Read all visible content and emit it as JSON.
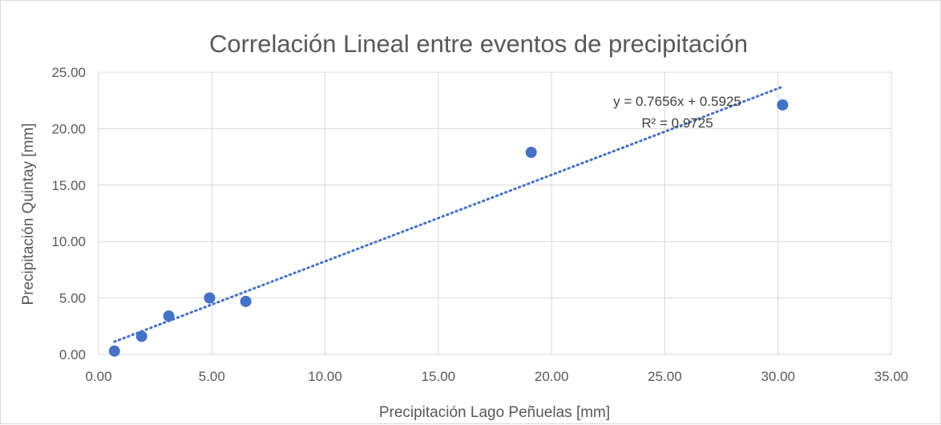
{
  "chart_data": {
    "type": "scatter",
    "title": "Correlación Lineal entre eventos de precipitación",
    "xlabel": "Precipitación Lago Peñuelas [mm]",
    "ylabel": "Precipitación Quintay [mm]",
    "xlim": [
      0,
      35
    ],
    "ylim": [
      0,
      25
    ],
    "xticks": [
      "0.00",
      "5.00",
      "10.00",
      "15.00",
      "20.00",
      "25.00",
      "30.00",
      "35.00"
    ],
    "yticks": [
      "0.00",
      "5.00",
      "10.00",
      "15.00",
      "20.00",
      "25.00"
    ],
    "grid": true,
    "series": [
      {
        "points": [
          {
            "x": 0.7,
            "y": 0.3
          },
          {
            "x": 1.9,
            "y": 1.6
          },
          {
            "x": 3.1,
            "y": 3.4
          },
          {
            "x": 4.9,
            "y": 5.0
          },
          {
            "x": 6.5,
            "y": 4.7
          },
          {
            "x": 19.1,
            "y": 17.9
          },
          {
            "x": 30.2,
            "y": 22.1
          }
        ],
        "color": "#4472c4"
      }
    ],
    "trendline": {
      "type": "linear",
      "slope": 0.7656,
      "intercept": 0.5925,
      "equation": "y = 0.7656x + 0.5925",
      "r_squared": "R² = 0.9725",
      "style": "dotted",
      "color": "#4472c4",
      "x_range": [
        0.7,
        30.2
      ]
    }
  }
}
